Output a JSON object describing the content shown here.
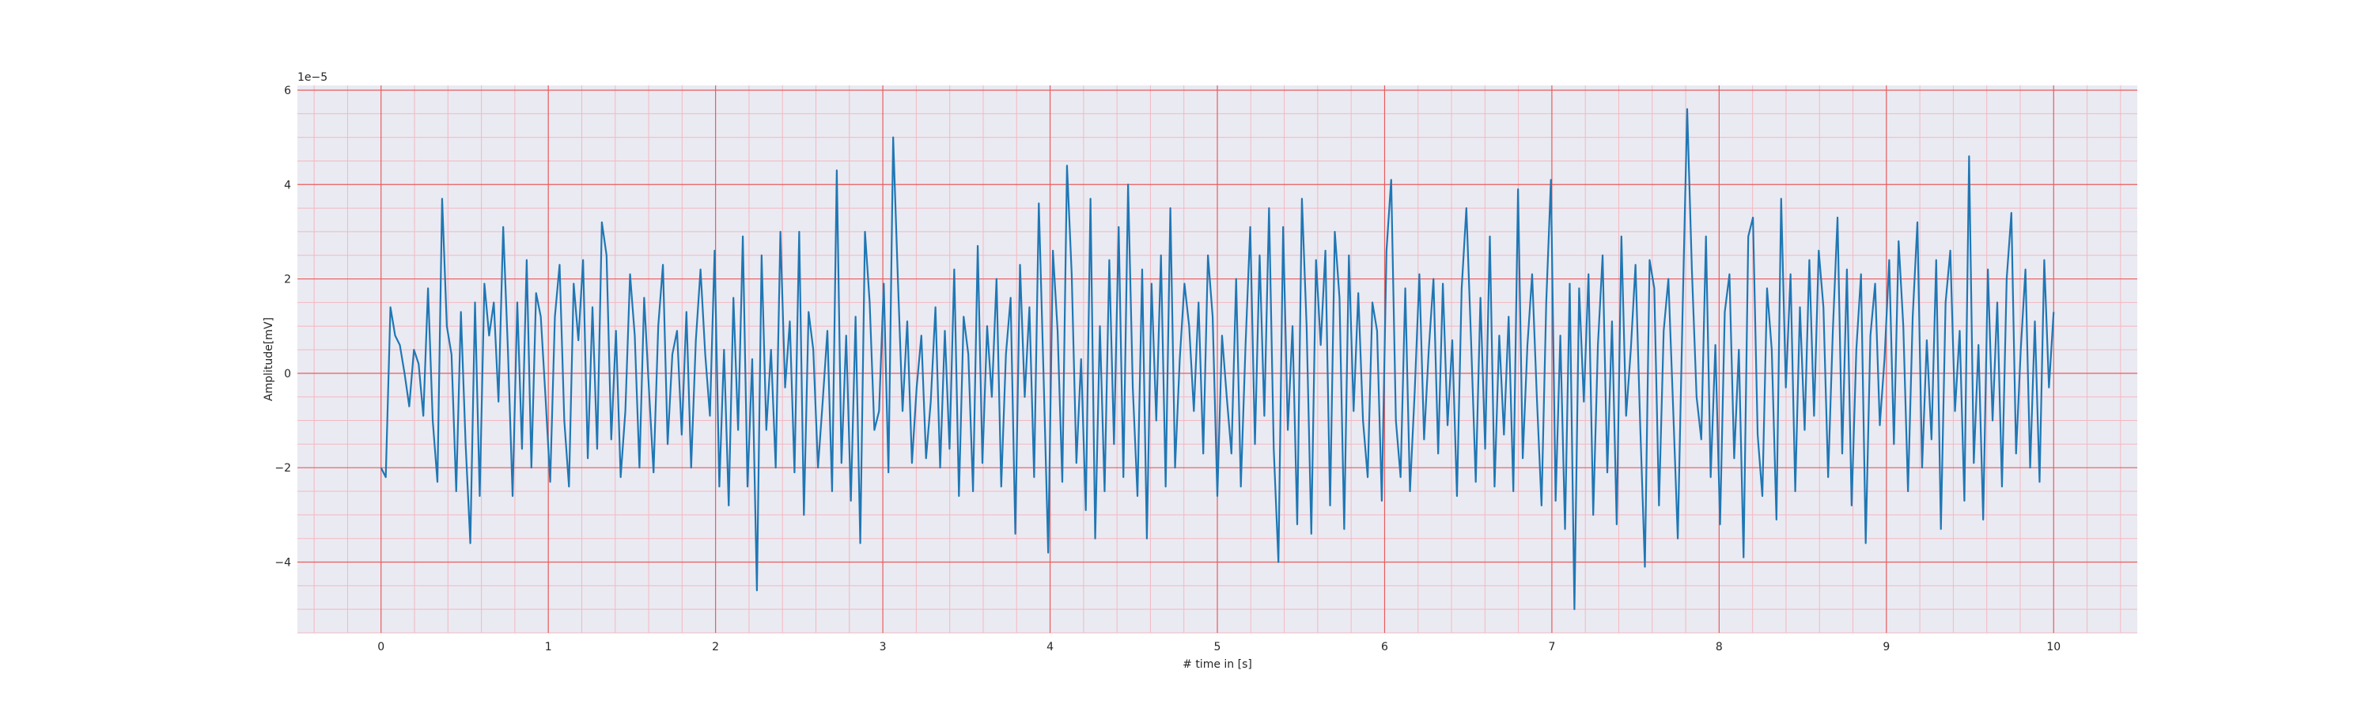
{
  "chart_data": {
    "type": "line",
    "xlabel": "# time in [s]",
    "ylabel": "Amplitude[mV]",
    "y_offset_label": "1e−5",
    "xlim": [
      -0.5,
      10.5
    ],
    "ylim": [
      -5.5,
      6.1
    ],
    "xticks": [
      0,
      1,
      2,
      3,
      4,
      5,
      6,
      7,
      8,
      9,
      10
    ],
    "xtick_labels": [
      "0",
      "1",
      "2",
      "3",
      "4",
      "5",
      "6",
      "7",
      "8",
      "9",
      "10"
    ],
    "yticks": [
      -4,
      -2,
      0,
      2,
      4,
      6
    ],
    "ytick_labels": [
      "−4",
      "−2",
      "0",
      "2",
      "4",
      "6"
    ],
    "grid": true,
    "minor_grid": true,
    "colors": {
      "background": "#eaeaf2",
      "major_grid": "#e85c5c",
      "minor_grid": "#f4b8c0",
      "line": "#1f77b4"
    },
    "series": [
      {
        "x_start": 0,
        "x_end": 10,
        "values": [
          -2.0,
          -2.2,
          1.4,
          0.8,
          0.6,
          0.0,
          -0.7,
          0.5,
          0.2,
          -0.9,
          1.8,
          -1.0,
          -2.3,
          3.7,
          1.0,
          0.4,
          -2.5,
          1.3,
          -1.5,
          -3.6,
          1.5,
          -2.6,
          1.9,
          0.8,
          1.5,
          -0.6,
          3.1,
          0.5,
          -2.6,
          1.5,
          -1.6,
          2.4,
          -2.0,
          1.7,
          1.2,
          -0.5,
          -2.3,
          1.2,
          2.3,
          -1.0,
          -2.4,
          1.9,
          0.7,
          2.4,
          -1.8,
          1.4,
          -1.6,
          3.2,
          2.5,
          -1.4,
          0.9,
          -2.2,
          -0.8,
          2.1,
          0.8,
          -2.0,
          1.6,
          -0.3,
          -2.1,
          1.0,
          2.3,
          -1.5,
          0.4,
          0.9,
          -1.3,
          1.3,
          -2.0,
          0.7,
          2.2,
          0.4,
          -0.9,
          2.6,
          -2.4,
          0.5,
          -2.8,
          1.6,
          -1.2,
          2.9,
          -2.4,
          0.3,
          -4.6,
          2.5,
          -1.2,
          0.5,
          -2.0,
          3.0,
          -0.3,
          1.1,
          -2.1,
          3.0,
          -3.0,
          1.3,
          0.5,
          -2.0,
          -0.6,
          0.9,
          -2.5,
          4.3,
          -1.9,
          0.8,
          -2.7,
          1.2,
          -3.6,
          3.0,
          1.5,
          -1.2,
          -0.8,
          1.9,
          -2.1,
          5.0,
          2.0,
          -0.8,
          1.1,
          -1.9,
          -0.3,
          0.8,
          -1.8,
          -0.6,
          1.4,
          -2.0,
          0.9,
          -1.6,
          2.2,
          -2.6,
          1.2,
          0.4,
          -2.5,
          2.7,
          -1.9,
          1.0,
          -0.5,
          2.0,
          -2.4,
          0.4,
          1.6,
          -3.4,
          2.3,
          -0.5,
          1.4,
          -2.2,
          3.6,
          0.0,
          -3.8,
          2.6,
          0.9,
          -2.3,
          4.4,
          2.1,
          -1.9,
          0.3,
          -2.9,
          3.7,
          -3.5,
          1.0,
          -2.5,
          2.4,
          -1.5,
          3.1,
          -2.2,
          4.0,
          -0.3,
          -2.6,
          2.2,
          -3.5,
          1.9,
          -1.0,
          2.5,
          -2.4,
          3.5,
          -2.0,
          0.3,
          1.9,
          1.0,
          -0.8,
          1.5,
          -1.7,
          2.5,
          1.2,
          -2.6,
          0.8,
          -0.5,
          -1.7,
          2.0,
          -2.4,
          0.6,
          3.1,
          -1.5,
          2.5,
          -0.9,
          3.5,
          -1.6,
          -4.0,
          3.1,
          -1.2,
          1.0,
          -3.2,
          3.7,
          1.0,
          -3.4,
          2.4,
          0.6,
          2.6,
          -2.8,
          3.0,
          1.6,
          -3.3,
          2.5,
          -0.8,
          1.7,
          -1.0,
          -2.2,
          1.5,
          0.9,
          -2.7,
          2.6,
          4.1,
          -1.0,
          -2.2,
          1.8,
          -2.5,
          -0.4,
          2.1,
          -1.4,
          0.5,
          2.0,
          -1.7,
          1.9,
          -1.1,
          0.7,
          -2.6,
          1.8,
          3.5,
          0.7,
          -2.3,
          1.6,
          -1.6,
          2.9,
          -2.4,
          0.8,
          -1.3,
          1.2,
          -2.5,
          3.9,
          -1.8,
          0.6,
          2.1,
          -0.5,
          -2.8,
          1.5,
          4.1,
          -2.7,
          0.8,
          -3.3,
          1.9,
          -5.0,
          1.8,
          -0.6,
          2.1,
          -3.0,
          0.6,
          2.5,
          -2.1,
          1.1,
          -3.2,
          2.9,
          -0.9,
          0.5,
          2.3,
          -1.1,
          -4.1,
          2.4,
          1.8,
          -2.8,
          0.9,
          2.0,
          -0.7,
          -3.5,
          1.2,
          5.6,
          2.2,
          -0.5,
          -1.4,
          2.9,
          -2.2,
          0.6,
          -3.2,
          1.3,
          2.1,
          -1.8,
          0.5,
          -3.9,
          2.9,
          3.3,
          -1.3,
          -2.6,
          1.8,
          0.5,
          -3.1,
          3.7,
          -0.3,
          2.1,
          -2.5,
          1.4,
          -1.2,
          2.4,
          -0.9,
          2.6,
          1.4,
          -2.2,
          0.9,
          3.3,
          -1.7,
          2.2,
          -2.8,
          0.5,
          2.1,
          -3.6,
          0.8,
          1.9,
          -1.1,
          0.3,
          2.4,
          -1.5,
          2.8,
          1.0,
          -2.5,
          1.2,
          3.2,
          -2.0,
          0.7,
          -1.4,
          2.4,
          -3.3,
          1.5,
          2.6,
          -0.8,
          0.9,
          -2.7,
          4.6,
          -1.9,
          0.6,
          -3.1,
          2.2,
          -1.0,
          1.5,
          -2.4,
          2.0,
          3.4,
          -1.7,
          0.5,
          2.2,
          -2.0,
          1.1,
          -2.3,
          2.4,
          -0.3,
          1.3
        ]
      }
    ]
  }
}
